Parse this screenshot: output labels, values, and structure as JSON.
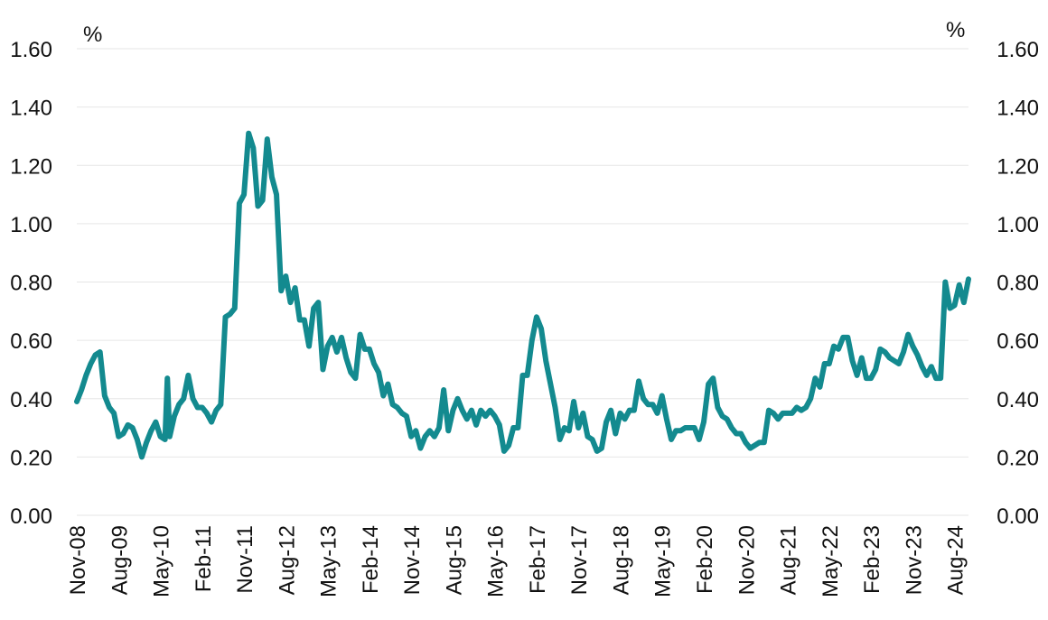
{
  "chart_data": {
    "type": "line",
    "title": "",
    "xlabel": "",
    "ylabel": "",
    "unit_left": "%",
    "unit_right": "%",
    "ylim": [
      0,
      1.6
    ],
    "yticks": [
      "0.00",
      "0.20",
      "0.40",
      "0.60",
      "0.80",
      "1.00",
      "1.20",
      "1.40",
      "1.60"
    ],
    "ytick_values": [
      0,
      0.2,
      0.4,
      0.6,
      0.8,
      1.0,
      1.2,
      1.4,
      1.6
    ],
    "x_start": "Nov-08",
    "x_end": "Jan-25",
    "xtick_labels": [
      "Nov-08",
      "Aug-09",
      "May-10",
      "Feb-11",
      "Nov-11",
      "Aug-12",
      "May-13",
      "Feb-14",
      "Nov-14",
      "Aug-15",
      "May-16",
      "Feb-17",
      "Nov-17",
      "Aug-18",
      "May-19",
      "Feb-20",
      "Nov-20",
      "Aug-21",
      "May-22",
      "Feb-23",
      "Nov-23",
      "Aug-24"
    ],
    "xtick_month_index": [
      0,
      9,
      18,
      27,
      36,
      45,
      54,
      63,
      72,
      81,
      90,
      99,
      108,
      117,
      126,
      135,
      144,
      153,
      162,
      171,
      180,
      189
    ],
    "grid": true,
    "series": [
      {
        "name": "Series",
        "color": "#138a8f",
        "points": [
          [
            0,
            0.39
          ],
          [
            1,
            0.43
          ],
          [
            2,
            0.48
          ],
          [
            3,
            0.52
          ],
          [
            4,
            0.55
          ],
          [
            5,
            0.56
          ],
          [
            6,
            0.41
          ],
          [
            7,
            0.37
          ],
          [
            8,
            0.35
          ],
          [
            9,
            0.27
          ],
          [
            10,
            0.28
          ],
          [
            11,
            0.31
          ],
          [
            12,
            0.3
          ],
          [
            13,
            0.26
          ],
          [
            14,
            0.2
          ],
          [
            15,
            0.25
          ],
          [
            16,
            0.29
          ],
          [
            17,
            0.32
          ],
          [
            18,
            0.27
          ],
          [
            19,
            0.26
          ],
          [
            19.5,
            0.47
          ],
          [
            20,
            0.27
          ],
          [
            21,
            0.34
          ],
          [
            22,
            0.38
          ],
          [
            23,
            0.4
          ],
          [
            24,
            0.48
          ],
          [
            25,
            0.4
          ],
          [
            26,
            0.37
          ],
          [
            27,
            0.37
          ],
          [
            28,
            0.35
          ],
          [
            29,
            0.32
          ],
          [
            30,
            0.36
          ],
          [
            31,
            0.38
          ],
          [
            32,
            0.68
          ],
          [
            33,
            0.69
          ],
          [
            34,
            0.71
          ],
          [
            35,
            1.07
          ],
          [
            36,
            1.1
          ],
          [
            37,
            1.31
          ],
          [
            38,
            1.26
          ],
          [
            39,
            1.06
          ],
          [
            40,
            1.08
          ],
          [
            41,
            1.29
          ],
          [
            42,
            1.16
          ],
          [
            43,
            1.1
          ],
          [
            44,
            0.77
          ],
          [
            45,
            0.82
          ],
          [
            46,
            0.73
          ],
          [
            47,
            0.78
          ],
          [
            48,
            0.67
          ],
          [
            49,
            0.67
          ],
          [
            50,
            0.58
          ],
          [
            51,
            0.71
          ],
          [
            52,
            0.73
          ],
          [
            53,
            0.5
          ],
          [
            54,
            0.58
          ],
          [
            55,
            0.61
          ],
          [
            56,
            0.56
          ],
          [
            57,
            0.61
          ],
          [
            58,
            0.54
          ],
          [
            59,
            0.49
          ],
          [
            60,
            0.47
          ],
          [
            61,
            0.62
          ],
          [
            62,
            0.57
          ],
          [
            63,
            0.57
          ],
          [
            64,
            0.52
          ],
          [
            65,
            0.49
          ],
          [
            66,
            0.41
          ],
          [
            67,
            0.45
          ],
          [
            68,
            0.38
          ],
          [
            69,
            0.37
          ],
          [
            70,
            0.35
          ],
          [
            71,
            0.34
          ],
          [
            72,
            0.27
          ],
          [
            73,
            0.29
          ],
          [
            74,
            0.23
          ],
          [
            75,
            0.27
          ],
          [
            76,
            0.29
          ],
          [
            77,
            0.27
          ],
          [
            78,
            0.3
          ],
          [
            79,
            0.43
          ],
          [
            80,
            0.29
          ],
          [
            81,
            0.36
          ],
          [
            82,
            0.4
          ],
          [
            83,
            0.36
          ],
          [
            84,
            0.33
          ],
          [
            85,
            0.36
          ],
          [
            86,
            0.31
          ],
          [
            87,
            0.36
          ],
          [
            88,
            0.34
          ],
          [
            89,
            0.36
          ],
          [
            90,
            0.34
          ],
          [
            91,
            0.31
          ],
          [
            92,
            0.22
          ],
          [
            93,
            0.24
          ],
          [
            94,
            0.3
          ],
          [
            95,
            0.3
          ],
          [
            96,
            0.48
          ],
          [
            97,
            0.48
          ],
          [
            98,
            0.6
          ],
          [
            99,
            0.68
          ],
          [
            100,
            0.64
          ],
          [
            101,
            0.53
          ],
          [
            102,
            0.45
          ],
          [
            103,
            0.37
          ],
          [
            104,
            0.26
          ],
          [
            105,
            0.3
          ],
          [
            106,
            0.29
          ],
          [
            107,
            0.39
          ],
          [
            108,
            0.3
          ],
          [
            109,
            0.35
          ],
          [
            110,
            0.27
          ],
          [
            111,
            0.26
          ],
          [
            112,
            0.22
          ],
          [
            113,
            0.23
          ],
          [
            114,
            0.32
          ],
          [
            115,
            0.36
          ],
          [
            116,
            0.28
          ],
          [
            117,
            0.35
          ],
          [
            118,
            0.33
          ],
          [
            119,
            0.36
          ],
          [
            120,
            0.36
          ],
          [
            121,
            0.46
          ],
          [
            122,
            0.4
          ],
          [
            123,
            0.38
          ],
          [
            124,
            0.38
          ],
          [
            125,
            0.35
          ],
          [
            126,
            0.41
          ],
          [
            127,
            0.33
          ],
          [
            128,
            0.26
          ],
          [
            129,
            0.29
          ],
          [
            130,
            0.29
          ],
          [
            131,
            0.3
          ],
          [
            132,
            0.3
          ],
          [
            133,
            0.3
          ],
          [
            134,
            0.26
          ],
          [
            135,
            0.32
          ],
          [
            136,
            0.45
          ],
          [
            137,
            0.47
          ],
          [
            138,
            0.37
          ],
          [
            139,
            0.34
          ],
          [
            140,
            0.33
          ],
          [
            141,
            0.3
          ],
          [
            142,
            0.28
          ],
          [
            143,
            0.28
          ],
          [
            144,
            0.25
          ],
          [
            145,
            0.23
          ],
          [
            146,
            0.24
          ],
          [
            147,
            0.25
          ],
          [
            148,
            0.25
          ],
          [
            149,
            0.36
          ],
          [
            150,
            0.35
          ],
          [
            151,
            0.33
          ],
          [
            152,
            0.35
          ],
          [
            153,
            0.35
          ],
          [
            154,
            0.35
          ],
          [
            155,
            0.37
          ],
          [
            156,
            0.36
          ],
          [
            157,
            0.37
          ],
          [
            158,
            0.4
          ],
          [
            159,
            0.47
          ],
          [
            160,
            0.44
          ],
          [
            161,
            0.52
          ],
          [
            162,
            0.52
          ],
          [
            163,
            0.58
          ],
          [
            164,
            0.57
          ],
          [
            165,
            0.61
          ],
          [
            166,
            0.61
          ],
          [
            167,
            0.53
          ],
          [
            168,
            0.48
          ],
          [
            169,
            0.54
          ],
          [
            170,
            0.47
          ],
          [
            171,
            0.47
          ],
          [
            172,
            0.5
          ],
          [
            173,
            0.57
          ],
          [
            174,
            0.56
          ],
          [
            175,
            0.54
          ],
          [
            176,
            0.53
          ],
          [
            177,
            0.52
          ],
          [
            178,
            0.56
          ],
          [
            179,
            0.62
          ],
          [
            180,
            0.58
          ],
          [
            181,
            0.55
          ],
          [
            182,
            0.51
          ],
          [
            183,
            0.48
          ],
          [
            184,
            0.51
          ],
          [
            185,
            0.47
          ],
          [
            186,
            0.47
          ],
          [
            187,
            0.8
          ],
          [
            188,
            0.71
          ],
          [
            189,
            0.72
          ],
          [
            190,
            0.79
          ],
          [
            191,
            0.73
          ],
          [
            192,
            0.81
          ]
        ]
      }
    ]
  }
}
